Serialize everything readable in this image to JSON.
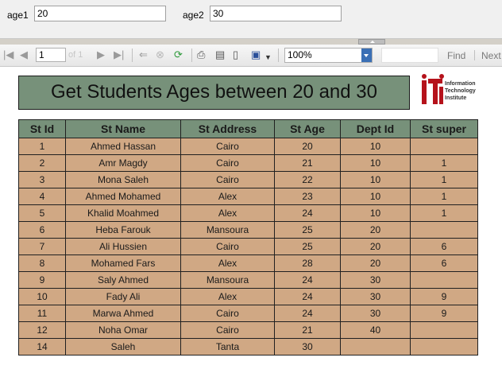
{
  "parameters": {
    "age1": {
      "label": "age1",
      "value": "20"
    },
    "age2": {
      "label": "age2",
      "value": "30"
    }
  },
  "toolbar": {
    "page_number": "1",
    "page_of": "of 1",
    "zoom": "100%",
    "find_label": "Find",
    "next_label": "Next"
  },
  "report": {
    "title": "Get Students Ages between 20 and 30",
    "logo_lines": [
      "Information",
      "Technology",
      "Institute"
    ],
    "columns": [
      "St Id",
      "St Name",
      "St Address",
      "St Age",
      "Dept Id",
      "St super"
    ],
    "rows": [
      [
        "1",
        "Ahmed Hassan",
        "Cairo",
        "20",
        "10",
        ""
      ],
      [
        "2",
        "Amr Magdy",
        "Cairo",
        "21",
        "10",
        "1"
      ],
      [
        "3",
        "Mona Saleh",
        "Cairo",
        "22",
        "10",
        "1"
      ],
      [
        "4",
        "Ahmed Mohamed",
        "Alex",
        "23",
        "10",
        "1"
      ],
      [
        "5",
        "Khalid Moahmed",
        "Alex",
        "24",
        "10",
        "1"
      ],
      [
        "6",
        "Heba Farouk",
        "Mansoura",
        "25",
        "20",
        ""
      ],
      [
        "7",
        "Ali Hussien",
        "Cairo",
        "25",
        "20",
        "6"
      ],
      [
        "8",
        "Mohamed Fars",
        "Alex",
        "28",
        "20",
        "6"
      ],
      [
        "9",
        "Saly Ahmed",
        "Mansoura",
        "24",
        "30",
        ""
      ],
      [
        "10",
        "Fady Ali",
        "Alex",
        "24",
        "30",
        "9"
      ],
      [
        "11",
        "Marwa Ahmed",
        "Cairo",
        "24",
        "30",
        "9"
      ],
      [
        "12",
        "Noha Omar",
        "Cairo",
        "21",
        "40",
        ""
      ],
      [
        "14",
        "Saleh",
        "Tanta",
        "30",
        "",
        ""
      ]
    ]
  }
}
